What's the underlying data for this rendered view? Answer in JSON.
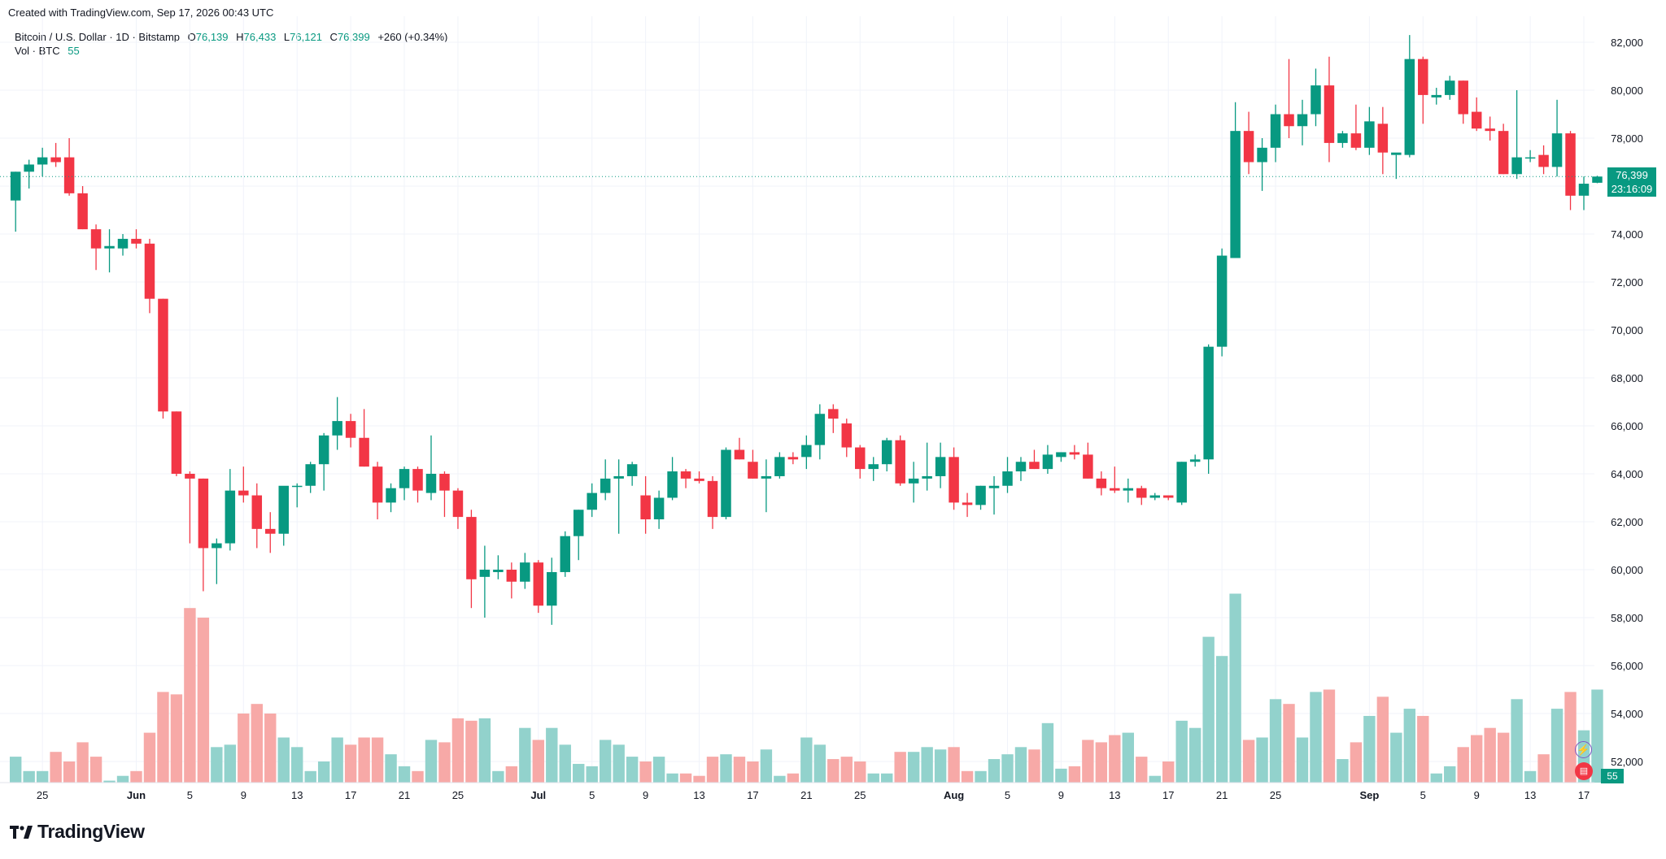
{
  "header": {
    "created": "Created with TradingView.com, Sep 17, 2026 00:43 UTC"
  },
  "legend": {
    "symbol": "Bitcoin / U.S. Dollar · 1D · Bitstamp",
    "o_label": "O",
    "o_value": "76,139",
    "h_label": "H",
    "h_value": "76,433",
    "l_label": "L",
    "l_value": "76,121",
    "c_label": "C",
    "c_value": "76,399",
    "change": "+260 (+0.34%)",
    "vol_label": "Vol · BTC",
    "vol_value": "55"
  },
  "price_tag": {
    "price": "76,399",
    "countdown": "23:16:09"
  },
  "vol_tag": "55",
  "logo": {
    "text": "TradingView"
  },
  "icons": {
    "alert": "lightning-icon",
    "flag": "us-flag-icon"
  },
  "colors": {
    "up": "#089981",
    "down": "#F23645",
    "vol_up": "#92D2CC",
    "vol_down": "#F7A9A7",
    "grid": "#F0F3FA"
  },
  "chart_data": {
    "type": "candlestick",
    "y_axis": {
      "ticks": [
        52000,
        54000,
        56000,
        58000,
        60000,
        62000,
        64000,
        66000,
        68000,
        70000,
        72000,
        74000,
        76000,
        78000,
        80000,
        82000
      ],
      "tick_labels": [
        "52,000",
        "54,000",
        "56,000",
        "58,000",
        "60,000",
        "62,000",
        "64,000",
        "66,000",
        "68,000",
        "70,000",
        "72,000",
        "74,000",
        "76,000",
        "78,000",
        "80,000",
        "82,000"
      ]
    },
    "x_axis": {
      "labels": [
        "25",
        "Jun",
        "5",
        "9",
        "13",
        "17",
        "21",
        "25",
        "Jul",
        "5",
        "9",
        "13",
        "17",
        "21",
        "25",
        "Aug",
        "5",
        "9",
        "13",
        "17",
        "21",
        "25",
        "Sep",
        "5",
        "9",
        "13",
        "17"
      ],
      "label_dates": [
        "2026-05-25",
        "2026-06-01",
        "2026-06-05",
        "2026-06-09",
        "2026-06-13",
        "2026-06-17",
        "2026-06-21",
        "2026-06-25",
        "2026-07-01",
        "2026-07-05",
        "2026-07-09",
        "2026-07-13",
        "2026-07-17",
        "2026-07-21",
        "2026-07-25",
        "2026-08-01",
        "2026-08-05",
        "2026-08-09",
        "2026-08-13",
        "2026-08-17",
        "2026-08-21",
        "2026-08-25",
        "2026-09-01",
        "2026-09-05",
        "2026-09-09",
        "2026-09-13",
        "2026-09-17"
      ]
    },
    "first_date": "2026-05-23",
    "last_price": 76399,
    "candles": [
      [
        75400,
        76600,
        74100,
        76600,
        52.2
      ],
      [
        76600,
        77100,
        75900,
        76900,
        51.6
      ],
      [
        76900,
        77600,
        76400,
        77200,
        51.6
      ],
      [
        77200,
        77800,
        76800,
        77000,
        52.4
      ],
      [
        77200,
        78000,
        75600,
        75700,
        52.0
      ],
      [
        75700,
        76000,
        74200,
        74200,
        52.8
      ],
      [
        74200,
        74400,
        72500,
        73400,
        52.2
      ],
      [
        73400,
        74200,
        72400,
        73500,
        51.2
      ],
      [
        73400,
        74000,
        73100,
        73800,
        51.4
      ],
      [
        73800,
        74200,
        73400,
        73600,
        51.6
      ],
      [
        73600,
        73800,
        70700,
        71300,
        53.2
      ],
      [
        71300,
        71300,
        66300,
        66600,
        54.9
      ],
      [
        66600,
        66600,
        63900,
        64000,
        54.8
      ],
      [
        64000,
        64100,
        61100,
        63800,
        58.4
      ],
      [
        63800,
        63800,
        59100,
        60900,
        58.0
      ],
      [
        60900,
        61300,
        59400,
        61100,
        52.6
      ],
      [
        61100,
        64200,
        60800,
        63300,
        52.7
      ],
      [
        63300,
        64300,
        62800,
        63100,
        54.0
      ],
      [
        63100,
        63600,
        60900,
        61700,
        54.4
      ],
      [
        61700,
        62400,
        60700,
        61500,
        54.0
      ],
      [
        61500,
        63400,
        61000,
        63500,
        53.0
      ],
      [
        63500,
        63600,
        62600,
        63500,
        52.6
      ],
      [
        63500,
        64500,
        63200,
        64400,
        51.6
      ],
      [
        64400,
        65700,
        63300,
        65600,
        52.0
      ],
      [
        65600,
        67200,
        65000,
        66200,
        53.0
      ],
      [
        66200,
        66500,
        65100,
        65500,
        52.7
      ],
      [
        65500,
        66700,
        64300,
        64300,
        53.0
      ],
      [
        64300,
        64500,
        62100,
        62800,
        53.0
      ],
      [
        62800,
        63600,
        62400,
        63400,
        52.3
      ],
      [
        63400,
        64300,
        62900,
        64200,
        51.8
      ],
      [
        64200,
        64300,
        62800,
        63300,
        51.6
      ],
      [
        63200,
        65600,
        62900,
        64000,
        52.9
      ],
      [
        64000,
        64100,
        62200,
        63300,
        52.8
      ],
      [
        63300,
        63400,
        61700,
        62200,
        53.8
      ],
      [
        62200,
        62500,
        58400,
        59600,
        53.7
      ],
      [
        59700,
        61000,
        58000,
        60000,
        53.8
      ],
      [
        59900,
        60600,
        59600,
        60000,
        51.6
      ],
      [
        60000,
        60300,
        58800,
        59500,
        51.8
      ],
      [
        59500,
        60700,
        59200,
        60300,
        53.4
      ],
      [
        60300,
        60400,
        58200,
        58500,
        52.9
      ],
      [
        58500,
        60500,
        57700,
        59900,
        53.4
      ],
      [
        59900,
        61600,
        59700,
        61400,
        52.7
      ],
      [
        61400,
        62500,
        60400,
        62500,
        51.9
      ],
      [
        62500,
        63600,
        62200,
        63200,
        51.8
      ],
      [
        63200,
        64600,
        62900,
        63800,
        52.9
      ],
      [
        63800,
        64600,
        61500,
        63900,
        52.7
      ],
      [
        63900,
        64500,
        63500,
        64400,
        52.2
      ],
      [
        63100,
        63900,
        61500,
        62100,
        52.0
      ],
      [
        62100,
        63300,
        61700,
        63000,
        52.2
      ],
      [
        63000,
        64700,
        62900,
        64100,
        51.5
      ],
      [
        64100,
        64200,
        63400,
        63800,
        51.5
      ],
      [
        63800,
        64100,
        63600,
        63700,
        51.4
      ],
      [
        63700,
        63900,
        61700,
        62200,
        52.2
      ],
      [
        62200,
        65100,
        62100,
        65000,
        52.3
      ],
      [
        65000,
        65500,
        64600,
        64600,
        52.2
      ],
      [
        64500,
        65000,
        63800,
        63800,
        52.0
      ],
      [
        63800,
        64600,
        62400,
        63900,
        52.5
      ],
      [
        63900,
        64900,
        63800,
        64700,
        51.4
      ],
      [
        64700,
        64900,
        64400,
        64600,
        51.5
      ],
      [
        64700,
        65600,
        64200,
        65200,
        53.0
      ],
      [
        65200,
        66900,
        64600,
        66500,
        52.7
      ],
      [
        66700,
        66900,
        65700,
        66300,
        52.1
      ],
      [
        66100,
        66300,
        64700,
        65100,
        52.2
      ],
      [
        65100,
        65200,
        63800,
        64200,
        52.0
      ],
      [
        64200,
        64700,
        63700,
        64400,
        51.5
      ],
      [
        64400,
        65500,
        64100,
        65400,
        51.5
      ],
      [
        65400,
        65600,
        63500,
        63600,
        52.4
      ],
      [
        63600,
        64500,
        62800,
        63800,
        52.4
      ],
      [
        63800,
        65300,
        63300,
        63900,
        52.6
      ],
      [
        63900,
        65300,
        63400,
        64700,
        52.5
      ],
      [
        64700,
        65100,
        62500,
        62800,
        52.6
      ],
      [
        62800,
        63200,
        62200,
        62700,
        51.6
      ],
      [
        62700,
        63500,
        62500,
        63500,
        51.6
      ],
      [
        63400,
        63900,
        62300,
        63500,
        52.1
      ],
      [
        63500,
        64700,
        63200,
        64100,
        52.3
      ],
      [
        64100,
        64700,
        63700,
        64500,
        52.6
      ],
      [
        64500,
        65000,
        64200,
        64200,
        52.5
      ],
      [
        64200,
        65200,
        64000,
        64800,
        53.6
      ],
      [
        64700,
        64900,
        64500,
        64900,
        51.7
      ],
      [
        64900,
        65200,
        64600,
        64800,
        51.8
      ],
      [
        64800,
        65300,
        63800,
        63800,
        52.9
      ],
      [
        63800,
        64100,
        63100,
        63400,
        52.8
      ],
      [
        63400,
        64300,
        63200,
        63300,
        53.1
      ],
      [
        63300,
        63800,
        62800,
        63400,
        53.2
      ],
      [
        63400,
        63500,
        62700,
        63000,
        52.2
      ],
      [
        63000,
        63200,
        62900,
        63100,
        51.4
      ],
      [
        63100,
        63100,
        62900,
        63000,
        52.0
      ],
      [
        62800,
        64500,
        62700,
        64500,
        53.7
      ],
      [
        64500,
        64800,
        64300,
        64600,
        53.4
      ],
      [
        64600,
        69400,
        64000,
        69300,
        57.2
      ],
      [
        69300,
        73400,
        68900,
        73100,
        56.4
      ],
      [
        73000,
        79500,
        73000,
        78300,
        59.0
      ],
      [
        78300,
        79100,
        76500,
        77000,
        52.9
      ],
      [
        77000,
        78000,
        75800,
        77600,
        53.0
      ],
      [
        77600,
        79400,
        77000,
        79000,
        54.6
      ],
      [
        79000,
        81300,
        78000,
        78500,
        54.4
      ],
      [
        78500,
        79600,
        77700,
        79000,
        53.0
      ],
      [
        79000,
        80900,
        78500,
        80200,
        54.9
      ],
      [
        80200,
        81400,
        77000,
        77800,
        55.0
      ],
      [
        77800,
        78300,
        77600,
        78200,
        52.1
      ],
      [
        78200,
        79400,
        77500,
        77600,
        52.8
      ],
      [
        77600,
        79300,
        77300,
        78700,
        53.9
      ],
      [
        78600,
        79300,
        76500,
        77400,
        54.7
      ],
      [
        77300,
        77300,
        76300,
        77400,
        53.2
      ],
      [
        77300,
        82300,
        77200,
        81300,
        54.2
      ],
      [
        81300,
        81400,
        78600,
        79800,
        53.9
      ],
      [
        79700,
        80100,
        79400,
        79800,
        51.5
      ],
      [
        79800,
        80600,
        79600,
        80400,
        51.8
      ],
      [
        80400,
        80400,
        78600,
        79000,
        52.6
      ],
      [
        79100,
        79700,
        78300,
        78400,
        53.1
      ],
      [
        78400,
        78900,
        77900,
        78300,
        53.4
      ],
      [
        78300,
        78600,
        76500,
        76500,
        53.2
      ],
      [
        76500,
        80000,
        76300,
        77200,
        54.6
      ],
      [
        77200,
        77500,
        77000,
        77200,
        51.6
      ],
      [
        77300,
        77700,
        76500,
        76800,
        52.3
      ],
      [
        76800,
        79600,
        76400,
        78200,
        54.2
      ],
      [
        78200,
        78300,
        75000,
        75600,
        54.9
      ],
      [
        75600,
        76400,
        75000,
        76100,
        53.3
      ],
      [
        76139,
        76433,
        76121,
        76399,
        55
      ]
    ]
  }
}
